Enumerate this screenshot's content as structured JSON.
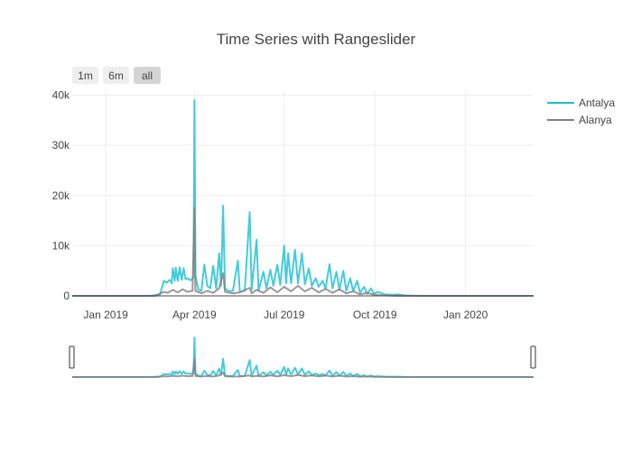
{
  "chart_data": {
    "type": "line",
    "title": "Time Series with Rangeslider",
    "range_buttons": [
      {
        "label": "1m",
        "active": false
      },
      {
        "label": "6m",
        "active": false
      },
      {
        "label": "all",
        "active": true
      }
    ],
    "x_range": [
      "2018-11-28",
      "2020-03-10"
    ],
    "y_range": [
      0,
      41000
    ],
    "x_ticks": [
      {
        "date": "2019-01-01",
        "label": "Jan 2019"
      },
      {
        "date": "2019-04-01",
        "label": "Apr 2019"
      },
      {
        "date": "2019-07-01",
        "label": "Jul 2019"
      },
      {
        "date": "2019-10-01",
        "label": "Oct 2019"
      },
      {
        "date": "2020-01-01",
        "label": "Jan 2020"
      }
    ],
    "y_ticks": [
      {
        "value": 0,
        "label": "0"
      },
      {
        "value": 10000,
        "label": "10k"
      },
      {
        "value": 20000,
        "label": "20k"
      },
      {
        "value": 30000,
        "label": "30k"
      },
      {
        "value": 40000,
        "label": "40k"
      }
    ],
    "legend_position": "right",
    "grid": true,
    "rangeslider": true,
    "series": [
      {
        "name": "Antalya",
        "color": "#17BECF",
        "points": [
          [
            "2018-11-28",
            0
          ],
          [
            "2019-01-15",
            0
          ],
          [
            "2019-02-15",
            0
          ],
          [
            "2019-02-25",
            300
          ],
          [
            "2019-03-01",
            3000
          ],
          [
            "2019-03-04",
            2600
          ],
          [
            "2019-03-07",
            3200
          ],
          [
            "2019-03-09",
            2500
          ],
          [
            "2019-03-10",
            5500
          ],
          [
            "2019-03-12",
            3000
          ],
          [
            "2019-03-13",
            5600
          ],
          [
            "2019-03-15",
            3000
          ],
          [
            "2019-03-17",
            5700
          ],
          [
            "2019-03-19",
            3200
          ],
          [
            "2019-03-21",
            5500
          ],
          [
            "2019-03-23",
            3300
          ],
          [
            "2019-03-25",
            3500
          ],
          [
            "2019-03-28",
            3100
          ],
          [
            "2019-03-31",
            3600
          ],
          [
            "2019-04-01",
            39000
          ],
          [
            "2019-04-02",
            4000
          ],
          [
            "2019-04-05",
            1200
          ],
          [
            "2019-04-08",
            1000
          ],
          [
            "2019-04-11",
            6200
          ],
          [
            "2019-04-14",
            2000
          ],
          [
            "2019-04-17",
            1500
          ],
          [
            "2019-04-20",
            6000
          ],
          [
            "2019-04-23",
            1500
          ],
          [
            "2019-04-26",
            8500
          ],
          [
            "2019-04-28",
            2000
          ],
          [
            "2019-04-30",
            18000
          ],
          [
            "2019-05-02",
            1500
          ],
          [
            "2019-05-05",
            1000
          ],
          [
            "2019-05-10",
            1000
          ],
          [
            "2019-05-15",
            7000
          ],
          [
            "2019-05-17",
            800
          ],
          [
            "2019-05-22",
            1000
          ],
          [
            "2019-05-27",
            16700
          ],
          [
            "2019-05-29",
            1200
          ],
          [
            "2019-06-03",
            11200
          ],
          [
            "2019-06-05",
            1000
          ],
          [
            "2019-06-10",
            4800
          ],
          [
            "2019-06-13",
            1500
          ],
          [
            "2019-06-17",
            5200
          ],
          [
            "2019-06-20",
            2000
          ],
          [
            "2019-06-24",
            6200
          ],
          [
            "2019-06-27",
            2200
          ],
          [
            "2019-07-01",
            10000
          ],
          [
            "2019-07-03",
            2500
          ],
          [
            "2019-07-05",
            8500
          ],
          [
            "2019-07-08",
            2500
          ],
          [
            "2019-07-12",
            9200
          ],
          [
            "2019-07-15",
            2500
          ],
          [
            "2019-07-19",
            8500
          ],
          [
            "2019-07-22",
            2300
          ],
          [
            "2019-07-26",
            5500
          ],
          [
            "2019-07-29",
            2000
          ],
          [
            "2019-08-02",
            3500
          ],
          [
            "2019-08-05",
            1800
          ],
          [
            "2019-08-09",
            3000
          ],
          [
            "2019-08-12",
            1500
          ],
          [
            "2019-08-16",
            6300
          ],
          [
            "2019-08-19",
            1500
          ],
          [
            "2019-08-23",
            4800
          ],
          [
            "2019-08-26",
            1200
          ],
          [
            "2019-08-30",
            5000
          ],
          [
            "2019-09-02",
            1000
          ],
          [
            "2019-09-06",
            3500
          ],
          [
            "2019-09-09",
            900
          ],
          [
            "2019-09-13",
            3000
          ],
          [
            "2019-09-16",
            600
          ],
          [
            "2019-09-20",
            1800
          ],
          [
            "2019-09-23",
            400
          ],
          [
            "2019-09-27",
            1500
          ],
          [
            "2019-09-30",
            400
          ],
          [
            "2019-10-04",
            800
          ],
          [
            "2019-10-11",
            300
          ],
          [
            "2019-10-18",
            200
          ],
          [
            "2019-10-25",
            300
          ],
          [
            "2019-11-01",
            100
          ],
          [
            "2019-11-15",
            0
          ],
          [
            "2020-03-10",
            0
          ]
        ]
      },
      {
        "name": "Alanya",
        "color": "#7F7F7F",
        "points": [
          [
            "2018-11-28",
            0
          ],
          [
            "2019-02-20",
            0
          ],
          [
            "2019-03-01",
            800
          ],
          [
            "2019-03-05",
            600
          ],
          [
            "2019-03-10",
            1200
          ],
          [
            "2019-03-15",
            700
          ],
          [
            "2019-03-20",
            1300
          ],
          [
            "2019-03-25",
            800
          ],
          [
            "2019-03-30",
            1000
          ],
          [
            "2019-04-01",
            17500
          ],
          [
            "2019-04-02",
            1000
          ],
          [
            "2019-04-08",
            500
          ],
          [
            "2019-04-14",
            1000
          ],
          [
            "2019-04-20",
            600
          ],
          [
            "2019-04-26",
            1500
          ],
          [
            "2019-04-30",
            4500
          ],
          [
            "2019-05-02",
            800
          ],
          [
            "2019-05-10",
            500
          ],
          [
            "2019-05-17",
            700
          ],
          [
            "2019-05-27",
            1600
          ],
          [
            "2019-05-29",
            500
          ],
          [
            "2019-06-03",
            1200
          ],
          [
            "2019-06-10",
            600
          ],
          [
            "2019-06-17",
            1700
          ],
          [
            "2019-06-24",
            700
          ],
          [
            "2019-07-01",
            1800
          ],
          [
            "2019-07-08",
            900
          ],
          [
            "2019-07-15",
            2000
          ],
          [
            "2019-07-22",
            900
          ],
          [
            "2019-07-29",
            1600
          ],
          [
            "2019-08-05",
            700
          ],
          [
            "2019-08-12",
            1400
          ],
          [
            "2019-08-19",
            600
          ],
          [
            "2019-08-26",
            1300
          ],
          [
            "2019-09-02",
            500
          ],
          [
            "2019-09-09",
            900
          ],
          [
            "2019-09-16",
            300
          ],
          [
            "2019-09-23",
            600
          ],
          [
            "2019-10-01",
            200
          ],
          [
            "2019-10-10",
            100
          ],
          [
            "2019-10-25",
            0
          ],
          [
            "2020-03-10",
            0
          ]
        ]
      }
    ]
  }
}
